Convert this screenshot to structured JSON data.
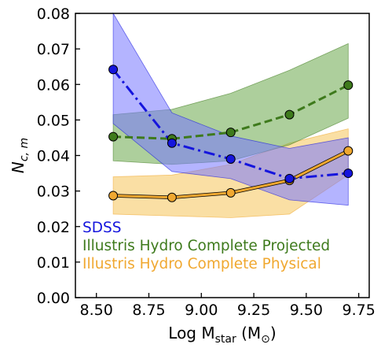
{
  "chart_data": {
    "type": "line",
    "xlabel": "Log M",
    "xlabel_sub": "star",
    "xlabel_unit_open": " (M",
    "xlabel_unit_sub": "⊙",
    "xlabel_unit_close": ")",
    "ylabel": "N",
    "ylabel_sub": "c, m",
    "xlim": [
      8.4,
      9.8
    ],
    "ylim": [
      0.0,
      0.08
    ],
    "xticks": [
      8.5,
      8.75,
      9.0,
      9.25,
      9.5,
      9.75
    ],
    "xtick_labels": [
      "8.50",
      "8.75",
      "9.00",
      "9.25",
      "9.50",
      "9.75"
    ],
    "yticks": [
      0.0,
      0.01,
      0.02,
      0.03,
      0.04,
      0.05,
      0.06,
      0.07,
      0.08
    ],
    "ytick_labels": [
      "0.00",
      "0.01",
      "0.02",
      "0.03",
      "0.04",
      "0.05",
      "0.06",
      "0.07",
      "0.08"
    ],
    "grid": false,
    "legend_position": "lower-left",
    "series": [
      {
        "name": "Illustris Hydro Complete Physical",
        "color": "#f0a830",
        "fill": "#f5c45a",
        "line_style": "solid",
        "x": [
          8.58,
          8.86,
          9.14,
          9.42,
          9.7
        ],
        "y": [
          0.0287,
          0.0282,
          0.0295,
          0.033,
          0.0413
        ],
        "lower": [
          0.0235,
          0.023,
          0.0225,
          0.0235,
          0.0345
        ],
        "upper": [
          0.034,
          0.0345,
          0.0375,
          0.0435,
          0.0475
        ]
      },
      {
        "name": "Illustris Hydro Complete Projected",
        "color": "#3e7a1c",
        "fill": "#6aa84a",
        "line_style": "dashed",
        "x": [
          8.58,
          8.86,
          9.14,
          9.42,
          9.7
        ],
        "y": [
          0.0453,
          0.0447,
          0.0465,
          0.0515,
          0.0598
        ],
        "lower": [
          0.0385,
          0.0375,
          0.0385,
          0.043,
          0.0505
        ],
        "upper": [
          0.0515,
          0.053,
          0.0575,
          0.064,
          0.0715
        ]
      },
      {
        "name": "SDSS",
        "color": "#1515dd",
        "fill": "#7777ff",
        "line_style": "dashdot",
        "x": [
          8.58,
          8.86,
          9.14,
          9.42,
          9.7
        ],
        "y": [
          0.0642,
          0.0435,
          0.039,
          0.0335,
          0.035
        ],
        "lower": [
          0.049,
          0.0355,
          0.0335,
          0.0275,
          0.026
        ],
        "upper": [
          0.08,
          0.052,
          0.0455,
          0.042,
          0.045
        ]
      }
    ],
    "legend": [
      {
        "label": "SDSS",
        "color": "#1515dd"
      },
      {
        "label": "Illustris Hydro Complete Projected",
        "color": "#3e7a1c"
      },
      {
        "label": "Illustris Hydro Complete Physical",
        "color": "#f0a830"
      }
    ]
  }
}
